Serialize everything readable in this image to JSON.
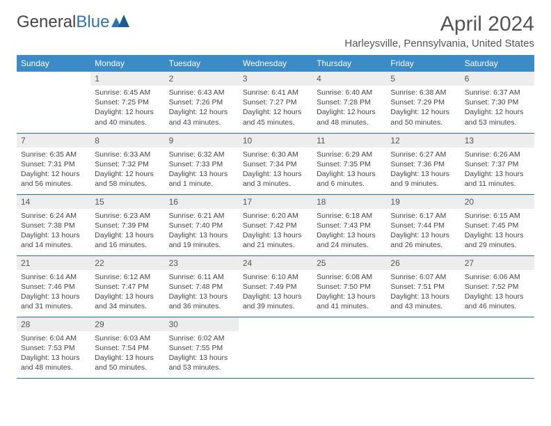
{
  "logo": {
    "text1": "General",
    "text2": "Blue"
  },
  "title": "April 2024",
  "location": "Harleysville, Pennsylvania, United States",
  "header_bg": "#3b8bc9",
  "header_fg": "#ffffff",
  "daynum_bg": "#ededed",
  "border_color": "#2e6ca8",
  "weekdays": [
    "Sunday",
    "Monday",
    "Tuesday",
    "Wednesday",
    "Thursday",
    "Friday",
    "Saturday"
  ],
  "weeks": [
    [
      null,
      {
        "n": "1",
        "sr": "6:45 AM",
        "ss": "7:25 PM",
        "dl1": "12 hours",
        "dl2": "and 40 minutes."
      },
      {
        "n": "2",
        "sr": "6:43 AM",
        "ss": "7:26 PM",
        "dl1": "12 hours",
        "dl2": "and 43 minutes."
      },
      {
        "n": "3",
        "sr": "6:41 AM",
        "ss": "7:27 PM",
        "dl1": "12 hours",
        "dl2": "and 45 minutes."
      },
      {
        "n": "4",
        "sr": "6:40 AM",
        "ss": "7:28 PM",
        "dl1": "12 hours",
        "dl2": "and 48 minutes."
      },
      {
        "n": "5",
        "sr": "6:38 AM",
        "ss": "7:29 PM",
        "dl1": "12 hours",
        "dl2": "and 50 minutes."
      },
      {
        "n": "6",
        "sr": "6:37 AM",
        "ss": "7:30 PM",
        "dl1": "12 hours",
        "dl2": "and 53 minutes."
      }
    ],
    [
      {
        "n": "7",
        "sr": "6:35 AM",
        "ss": "7:31 PM",
        "dl1": "12 hours",
        "dl2": "and 56 minutes."
      },
      {
        "n": "8",
        "sr": "6:33 AM",
        "ss": "7:32 PM",
        "dl1": "12 hours",
        "dl2": "and 58 minutes."
      },
      {
        "n": "9",
        "sr": "6:32 AM",
        "ss": "7:33 PM",
        "dl1": "13 hours",
        "dl2": "and 1 minute."
      },
      {
        "n": "10",
        "sr": "6:30 AM",
        "ss": "7:34 PM",
        "dl1": "13 hours",
        "dl2": "and 3 minutes."
      },
      {
        "n": "11",
        "sr": "6:29 AM",
        "ss": "7:35 PM",
        "dl1": "13 hours",
        "dl2": "and 6 minutes."
      },
      {
        "n": "12",
        "sr": "6:27 AM",
        "ss": "7:36 PM",
        "dl1": "13 hours",
        "dl2": "and 9 minutes."
      },
      {
        "n": "13",
        "sr": "6:26 AM",
        "ss": "7:37 PM",
        "dl1": "13 hours",
        "dl2": "and 11 minutes."
      }
    ],
    [
      {
        "n": "14",
        "sr": "6:24 AM",
        "ss": "7:38 PM",
        "dl1": "13 hours",
        "dl2": "and 14 minutes."
      },
      {
        "n": "15",
        "sr": "6:23 AM",
        "ss": "7:39 PM",
        "dl1": "13 hours",
        "dl2": "and 16 minutes."
      },
      {
        "n": "16",
        "sr": "6:21 AM",
        "ss": "7:40 PM",
        "dl1": "13 hours",
        "dl2": "and 19 minutes."
      },
      {
        "n": "17",
        "sr": "6:20 AM",
        "ss": "7:42 PM",
        "dl1": "13 hours",
        "dl2": "and 21 minutes."
      },
      {
        "n": "18",
        "sr": "6:18 AM",
        "ss": "7:43 PM",
        "dl1": "13 hours",
        "dl2": "and 24 minutes."
      },
      {
        "n": "19",
        "sr": "6:17 AM",
        "ss": "7:44 PM",
        "dl1": "13 hours",
        "dl2": "and 26 minutes."
      },
      {
        "n": "20",
        "sr": "6:15 AM",
        "ss": "7:45 PM",
        "dl1": "13 hours",
        "dl2": "and 29 minutes."
      }
    ],
    [
      {
        "n": "21",
        "sr": "6:14 AM",
        "ss": "7:46 PM",
        "dl1": "13 hours",
        "dl2": "and 31 minutes."
      },
      {
        "n": "22",
        "sr": "6:12 AM",
        "ss": "7:47 PM",
        "dl1": "13 hours",
        "dl2": "and 34 minutes."
      },
      {
        "n": "23",
        "sr": "6:11 AM",
        "ss": "7:48 PM",
        "dl1": "13 hours",
        "dl2": "and 36 minutes."
      },
      {
        "n": "24",
        "sr": "6:10 AM",
        "ss": "7:49 PM",
        "dl1": "13 hours",
        "dl2": "and 39 minutes."
      },
      {
        "n": "25",
        "sr": "6:08 AM",
        "ss": "7:50 PM",
        "dl1": "13 hours",
        "dl2": "and 41 minutes."
      },
      {
        "n": "26",
        "sr": "6:07 AM",
        "ss": "7:51 PM",
        "dl1": "13 hours",
        "dl2": "and 43 minutes."
      },
      {
        "n": "27",
        "sr": "6:06 AM",
        "ss": "7:52 PM",
        "dl1": "13 hours",
        "dl2": "and 46 minutes."
      }
    ],
    [
      {
        "n": "28",
        "sr": "6:04 AM",
        "ss": "7:53 PM",
        "dl1": "13 hours",
        "dl2": "and 48 minutes."
      },
      {
        "n": "29",
        "sr": "6:03 AM",
        "ss": "7:54 PM",
        "dl1": "13 hours",
        "dl2": "and 50 minutes."
      },
      {
        "n": "30",
        "sr": "6:02 AM",
        "ss": "7:55 PM",
        "dl1": "13 hours",
        "dl2": "and 53 minutes."
      },
      null,
      null,
      null,
      null
    ]
  ],
  "labels": {
    "sunrise": "Sunrise:",
    "sunset": "Sunset:",
    "daylight": "Daylight:"
  }
}
